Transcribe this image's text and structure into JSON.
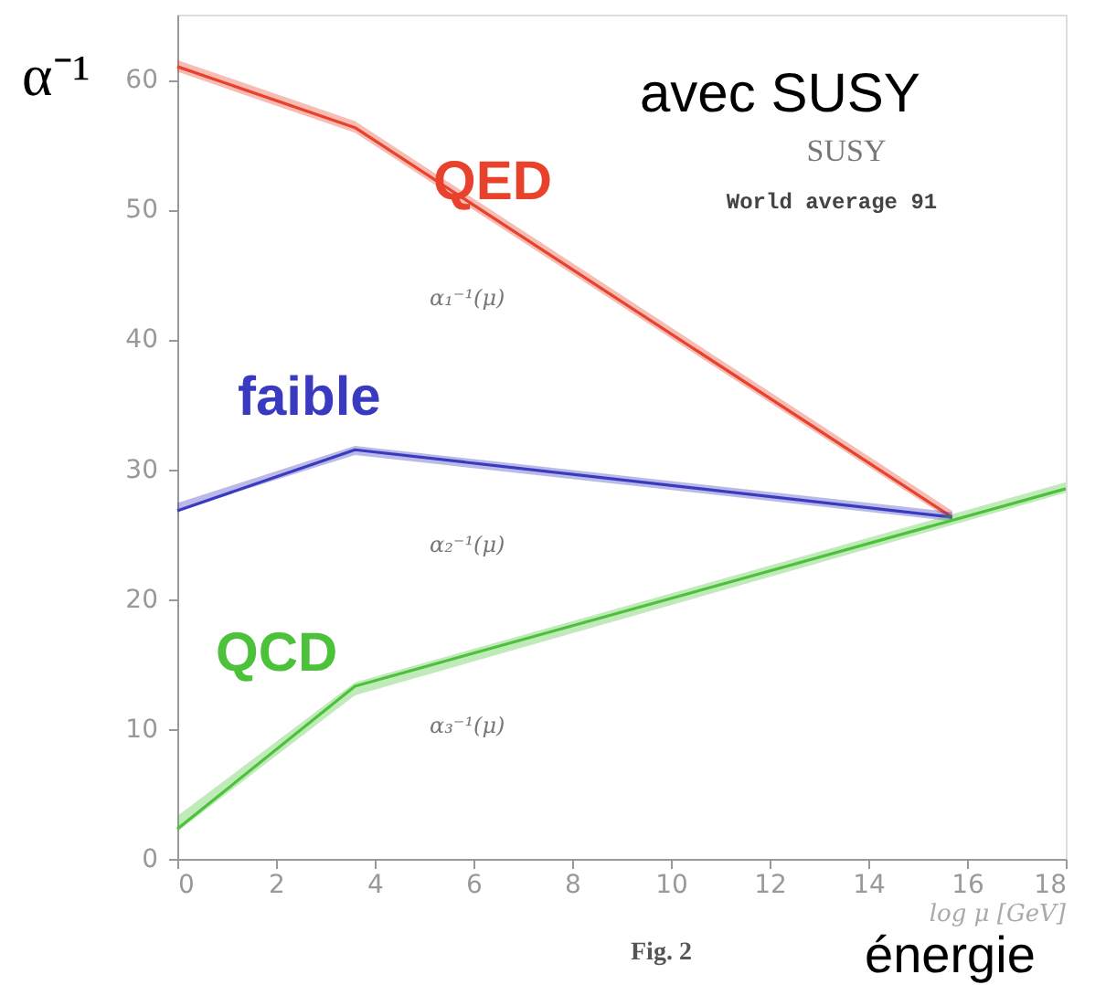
{
  "chart_data": {
    "type": "line",
    "ylabel": "α⁻¹",
    "xlabel": "log μ [GeV]",
    "xlim": [
      0,
      18
    ],
    "xticks": [
      0,
      2,
      4,
      6,
      8,
      10,
      12,
      14,
      16,
      18
    ],
    "ylim": [
      0,
      65
    ],
    "yticks": [
      0,
      10,
      20,
      30,
      40,
      50,
      60
    ],
    "grid": false,
    "marker": "none",
    "line_style": "solid",
    "series": [
      {
        "name": "QED",
        "color": "#e8412c",
        "x": [
          0,
          3.6,
          15.7
        ],
        "values": [
          61.0,
          56.3,
          26.3
        ],
        "lower": [
          60.6,
          55.9,
          26.0
        ],
        "upper": [
          61.5,
          56.8,
          26.8
        ]
      },
      {
        "name": "faible",
        "color": "#3a3ac0",
        "x": [
          0,
          3.6,
          15.7
        ],
        "values": [
          26.8,
          31.5,
          26.3
        ],
        "lower": [
          26.8,
          31.1,
          26.0
        ],
        "upper": [
          27.4,
          31.8,
          26.7
        ]
      },
      {
        "name": "QCD",
        "color": "#4cc23a",
        "x": [
          0,
          3.6,
          18
        ],
        "values": [
          2.3,
          13.3,
          28.5
        ],
        "lower": [
          2.1,
          12.6,
          28.2
        ],
        "upper": [
          3.3,
          13.6,
          29.0
        ]
      }
    ],
    "annotations": [
      "avec SUSY",
      "SUSY",
      "World average 91",
      "α₁⁻¹(μ)",
      "α₂⁻¹(μ)",
      "α₃⁻¹(μ)",
      "Fig. 2",
      "énergie"
    ]
  }
}
